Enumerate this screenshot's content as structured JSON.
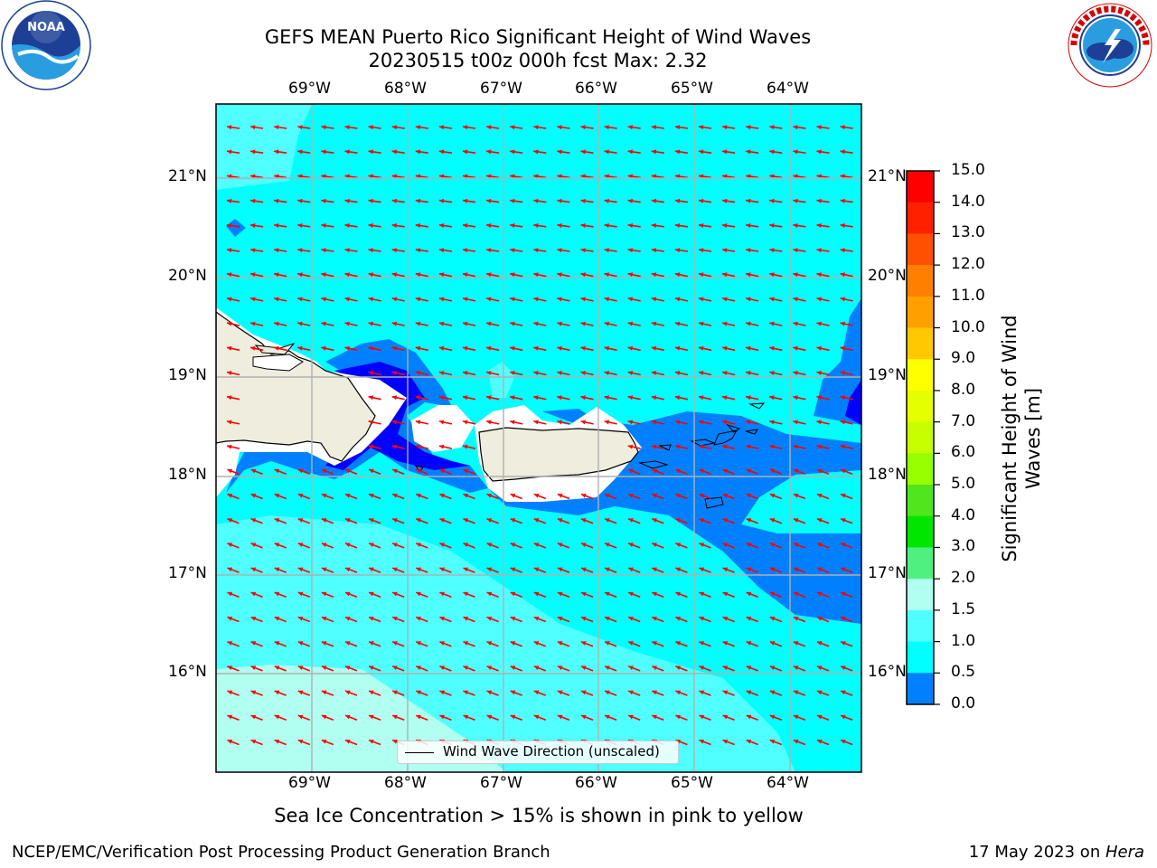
{
  "title": {
    "line1": "GEFS MEAN Puerto Rico Significant Height of Wind Waves",
    "line2": "20230515 t00z 000h fcst   Max: 2.32"
  },
  "logos": {
    "left": {
      "icon": "noaa-logo",
      "text": "NOAA",
      "ring_text": "NATIONAL OCEANIC AND ATMOSPHERIC ADMINISTRATION · U.S. DEPARTMENT OF COMMERCE"
    },
    "right": {
      "icon": "national-weather-service-logo",
      "ring_text": "NATIONAL WEATHER SERVICE"
    }
  },
  "axes": {
    "lon_labels": [
      "69°W",
      "68°W",
      "67°W",
      "66°W",
      "65°W",
      "64°W"
    ],
    "lat_labels": [
      "21°N",
      "20°N",
      "19°N",
      "18°N",
      "17°N",
      "16°N"
    ]
  },
  "legend": {
    "label": "Wind Wave Direction (unscaled)"
  },
  "colorbar": {
    "label": "Significant Height of Wind Waves [m]",
    "label_line1": "Significant Height of Wind",
    "label_line2": "Waves [m]",
    "ticks": [
      "15.0",
      "14.0",
      "13.0",
      "12.0",
      "11.0",
      "10.0",
      "9.0",
      "8.0",
      "7.0",
      "6.0",
      "5.0",
      "4.0",
      "3.0",
      "2.0",
      "1.5",
      "1.0",
      "0.5",
      "0.0"
    ],
    "colors": [
      "#ff0000",
      "#ff2000",
      "#ff5000",
      "#ff8000",
      "#ffa000",
      "#ffc800",
      "#ffff00",
      "#e6ff00",
      "#c8ff00",
      "#96ff00",
      "#50e61e",
      "#00e600",
      "#50f080",
      "#b0fff0",
      "#50ffff",
      "#00ffff",
      "#0080ff",
      "#0000ff"
    ]
  },
  "footnote": "Sea Ice Concentration > 15% is shown in pink to yellow",
  "footer": {
    "left": "NCEP/EMC/Verification Post Processing Product Generation Branch",
    "right_date": "17 May 2023 on ",
    "right_host": "Hera"
  },
  "map_colors": {
    "ocean_main": "#00ffff",
    "ocean_light": "#50ffff",
    "ocean_lighter": "#b0fff0",
    "ocean_medium": "#0080ff",
    "ocean_dark": "#0000ff",
    "land": "#eeedde",
    "arrow": "#ff0000",
    "grid": "#b0b0b0"
  }
}
